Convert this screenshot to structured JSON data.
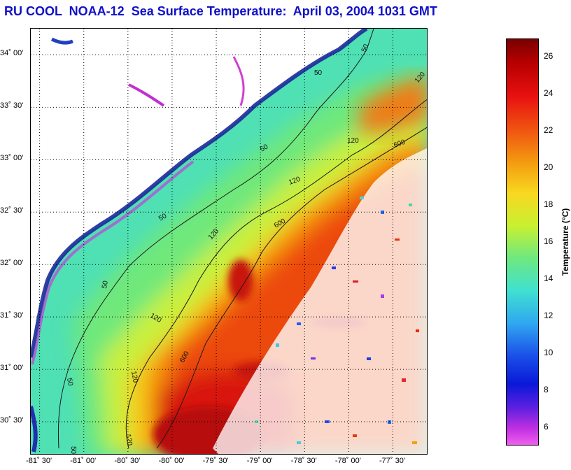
{
  "title": {
    "text": "RU COOL  NOAA-12  Sea Surface Temperature:  April 03, 2004 1031 GMT",
    "color": "#1010c8"
  },
  "map": {
    "lat_ticks": [
      {
        "value": 34.0,
        "label": "34˚ 00'"
      },
      {
        "value": 33.5,
        "label": "33˚ 30'"
      },
      {
        "value": 33.0,
        "label": "33˚ 00'"
      },
      {
        "value": 32.5,
        "label": "32˚ 30'"
      },
      {
        "value": 32.0,
        "label": "32˚ 00'"
      },
      {
        "value": 31.5,
        "label": "31˚ 30'"
      },
      {
        "value": 31.0,
        "label": "31˚ 00'"
      },
      {
        "value": 30.5,
        "label": "30˚ 30'"
      }
    ],
    "lon_ticks": [
      {
        "value": -81.5,
        "label": "-81˚ 30'"
      },
      {
        "value": -81.0,
        "label": "-81˚ 00'"
      },
      {
        "value": -80.5,
        "label": "-80˚ 30'"
      },
      {
        "value": -80.0,
        "label": "-80˚ 00'"
      },
      {
        "value": -79.5,
        "label": "-79˚ 30'"
      },
      {
        "value": -79.0,
        "label": "-79˚ 00'"
      },
      {
        "value": -78.5,
        "label": "-78˚ 30'"
      },
      {
        "value": -78.0,
        "label": "-78˚ 00'"
      },
      {
        "value": -77.5,
        "label": "-77˚ 30'"
      }
    ],
    "contour_labels": [
      "50",
      "50",
      "50",
      "50",
      "50",
      "50",
      "50",
      "120",
      "120",
      "120",
      "120",
      "120",
      "120",
      "120",
      "600",
      "600",
      "600"
    ]
  },
  "colorbar": {
    "label": "Temperature (°C)",
    "range": [
      5,
      27
    ],
    "ticks": [
      "6",
      "8",
      "10",
      "12",
      "14",
      "16",
      "18",
      "20",
      "22",
      "24",
      "26"
    ]
  },
  "colors": {
    "land": "#ffffff",
    "coast_dark": "#1a2a9a",
    "contour": "#1a1a1a"
  }
}
